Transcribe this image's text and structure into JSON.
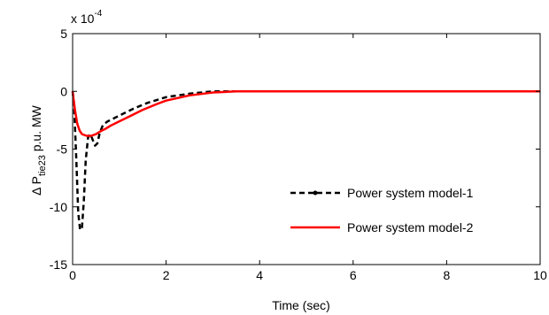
{
  "chart_data": {
    "type": "line",
    "title": "",
    "xlabel": "Time (sec)",
    "ylabel": {
      "prefix": "Δ P",
      "subscript": "tie23",
      "suffix": " p.u. MW"
    },
    "y_multiplier": {
      "base": "x 10",
      "exponent": "-4"
    },
    "xlim": [
      0,
      10
    ],
    "ylim": [
      -15,
      5
    ],
    "xticks": [
      0,
      2,
      4,
      6,
      8,
      10
    ],
    "yticks": [
      5,
      0,
      -5,
      -10,
      -15
    ],
    "grid": false,
    "legend_position": "lower-right",
    "series": [
      {
        "name": "Power system model-1",
        "color": "#000000",
        "style": "dashed-with-dot-marker",
        "x": [
          0,
          0.03,
          0.08,
          0.12,
          0.16,
          0.2,
          0.24,
          0.28,
          0.33,
          0.38,
          0.43,
          0.48,
          0.53,
          0.58,
          0.65,
          0.75,
          0.9,
          1.1,
          1.3,
          1.6,
          2.0,
          2.5,
          3.0,
          3.5,
          4.0,
          5,
          6,
          7,
          8,
          9,
          10
        ],
        "values": [
          0,
          -1.0,
          -6.0,
          -10.5,
          -12.0,
          -11.8,
          -9.5,
          -6.0,
          -4.0,
          -3.7,
          -4.2,
          -4.7,
          -4.5,
          -3.6,
          -2.9,
          -2.6,
          -2.3,
          -1.9,
          -1.5,
          -1.0,
          -0.5,
          -0.2,
          0,
          0,
          0,
          0,
          0,
          0,
          0,
          0,
          0
        ]
      },
      {
        "name": "Power system model-2",
        "color": "#ff0000",
        "style": "solid",
        "x": [
          0,
          0.05,
          0.1,
          0.15,
          0.2,
          0.3,
          0.4,
          0.5,
          0.6,
          0.7,
          0.8,
          1.0,
          1.2,
          1.5,
          1.8,
          2.0,
          2.5,
          3.0,
          3.5,
          4.0,
          5,
          6,
          7,
          8,
          9,
          10
        ],
        "values": [
          0,
          -1.6,
          -2.8,
          -3.4,
          -3.7,
          -3.85,
          -3.85,
          -3.7,
          -3.45,
          -3.25,
          -3.0,
          -2.6,
          -2.2,
          -1.6,
          -1.1,
          -0.8,
          -0.35,
          -0.1,
          0,
          0,
          0,
          0,
          0,
          0,
          0,
          0
        ]
      }
    ]
  }
}
